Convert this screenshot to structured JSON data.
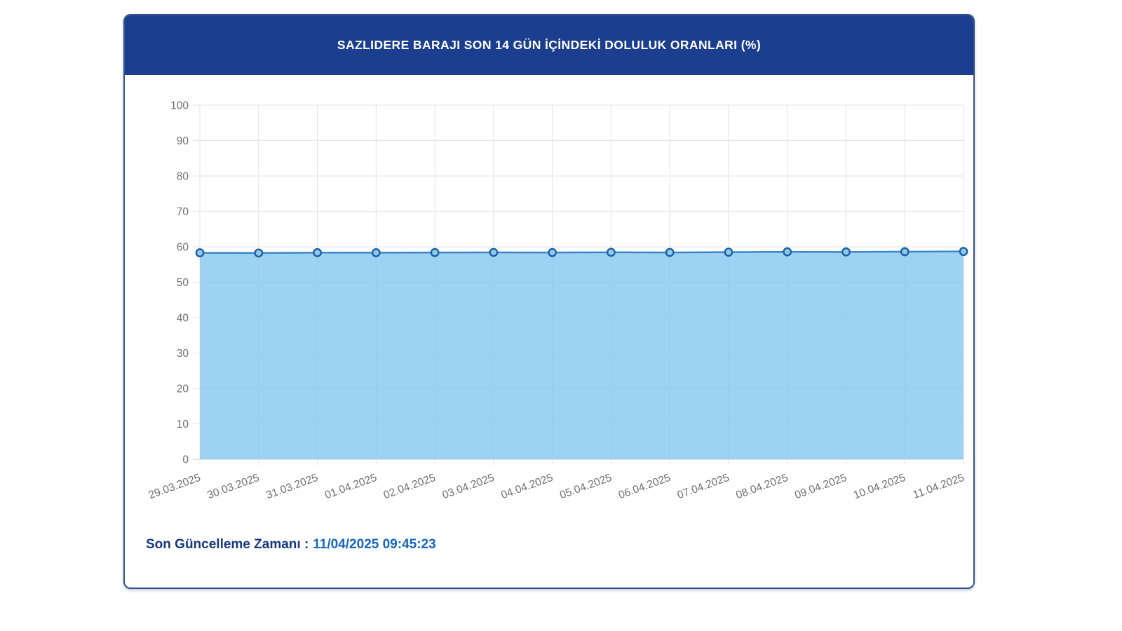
{
  "card": {
    "header": {
      "title": "SAZLIDERE BARAJI SON 14 GÜN İÇİNDEKİ DOLULUK ORANLARI (%)",
      "background": "#1c3e8f",
      "text_color": "#ffffff"
    },
    "footer": {
      "label": "Son Güncelleme Zamanı :",
      "value": "11/04/2025 09:45:23",
      "label_color": "#16387f",
      "value_color": "#1565c0"
    },
    "border_color": "#33508f"
  },
  "chart_data": {
    "type": "area",
    "title": "SAZLIDERE BARAJI SON 14 GÜN İÇİNDEKİ DOLULUK ORANLARI (%)",
    "categories": [
      "29.03.2025",
      "30.03.2025",
      "31.03.2025",
      "01.04.2025",
      "02.04.2025",
      "03.04.2025",
      "04.04.2025",
      "05.04.2025",
      "06.04.2025",
      "07.04.2025",
      "08.04.2025",
      "09.04.2025",
      "10.04.2025",
      "11.04.2025"
    ],
    "values": [
      58.3,
      58.25,
      58.35,
      58.33,
      58.38,
      58.42,
      58.38,
      58.44,
      58.4,
      58.48,
      58.58,
      58.55,
      58.62,
      58.68
    ],
    "xlabel": "",
    "ylabel": "",
    "ylim": [
      0,
      100
    ],
    "ytick_step": 10,
    "grid": true,
    "legend": false,
    "colors": {
      "line": "#3a87c8",
      "fill_rgba": "rgba(126,195,237,0.75)",
      "marker_fill": "#8ecaec",
      "marker_stroke": "#1d5fa0",
      "grid": "#e3e3e3",
      "axis": "#c8c8c8",
      "tick_label": "#6e6e6e"
    }
  }
}
